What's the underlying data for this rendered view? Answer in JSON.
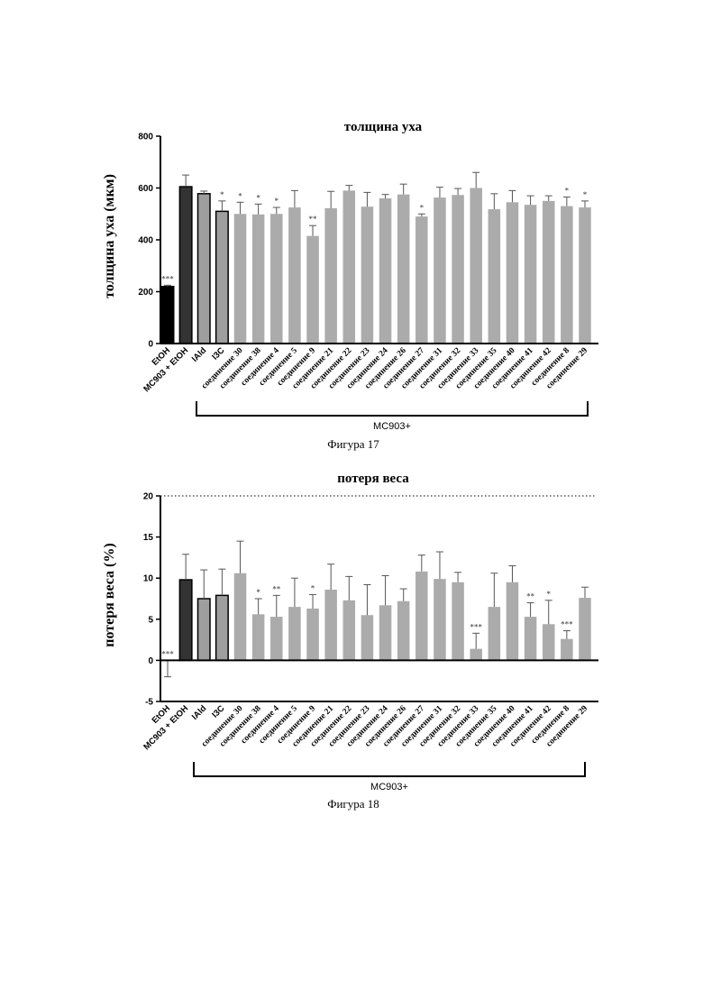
{
  "chart_data": [
    {
      "type": "bar",
      "title": "толщина уха",
      "ylabel": "толщина уха (мкм)",
      "xlabel": "",
      "ylim": [
        0,
        800
      ],
      "yticks": [
        "0",
        "200",
        "400",
        "600",
        "800"
      ],
      "ytick_values": [
        0,
        200,
        400,
        600,
        800
      ],
      "categories": [
        "EtOH",
        "MC903 + EtOH",
        "IAld",
        "I3C",
        "соединение 30",
        "соединение 38",
        "соединение 4",
        "соединение 5",
        "соединение 9",
        "соединение 21",
        "соединение 22",
        "соединение 23",
        "соединение 24",
        "соединение 26",
        "соединение 27",
        "соединение 31",
        "соединение 32",
        "соединение 33",
        "соединение 35",
        "соединение 40",
        "соединение 41",
        "соединение 42",
        "соединение 8",
        "соединение 29"
      ],
      "values": [
        220,
        605,
        578,
        510,
        500,
        498,
        500,
        525,
        415,
        522,
        590,
        528,
        560,
        575,
        490,
        563,
        573,
        600,
        518,
        545,
        535,
        550,
        530,
        525
      ],
      "errors": [
        5,
        45,
        10,
        40,
        45,
        40,
        25,
        65,
        40,
        65,
        20,
        55,
        15,
        40,
        10,
        40,
        25,
        60,
        60,
        45,
        35,
        20,
        35,
        25
      ],
      "significance": [
        "***",
        "",
        "",
        "*",
        "*",
        "*",
        "*",
        "",
        "**",
        "",
        "",
        "",
        "",
        "",
        "*",
        "",
        "",
        "",
        "",
        "",
        "",
        "",
        "*",
        "*"
      ],
      "bar_colors": [
        "#000000",
        "#333333",
        "#9e9e9e",
        "#9e9e9e",
        "#ababab",
        "#ababab",
        "#ababab",
        "#ababab",
        "#ababab",
        "#ababab",
        "#ababab",
        "#ababab",
        "#ababab",
        "#ababab",
        "#ababab",
        "#ababab",
        "#ababab",
        "#ababab",
        "#ababab",
        "#ababab",
        "#ababab",
        "#ababab",
        "#ababab",
        "#ababab"
      ],
      "bar_outlined": [
        true,
        true,
        true,
        true,
        false,
        false,
        false,
        false,
        false,
        false,
        false,
        false,
        false,
        false,
        false,
        false,
        false,
        false,
        false,
        false,
        false,
        false,
        false,
        false
      ],
      "group_label": "MC903+",
      "caption": "Фигура 17"
    },
    {
      "type": "bar",
      "title": "потеря веса",
      "ylabel": "потеря веса (%)",
      "xlabel": "",
      "ylim": [
        -5,
        20
      ],
      "yticks": [
        "-5",
        "0",
        "5",
        "10",
        "15",
        "20"
      ],
      "ytick_values": [
        -5,
        0,
        5,
        10,
        15,
        20
      ],
      "reference_line": 20,
      "categories": [
        "EtOH",
        "MC903 + EtOH",
        "IAld",
        "I3C",
        "соединение 30",
        "соединение 38",
        "соединение 4",
        "соединение 5",
        "соединение 9",
        "соединение 21",
        "соединение 22",
        "соединение 23",
        "соединение 24",
        "соединение 26",
        "соединение 27",
        "соединение 31",
        "соединение 32",
        "соединение 33",
        "соединение 35",
        "соединение 40",
        "соединение 41",
        "соединение 42",
        "соединение 8",
        "соединение 29"
      ],
      "values": [
        0,
        9.8,
        7.5,
        7.9,
        10.6,
        5.6,
        5.3,
        6.5,
        6.3,
        8.6,
        7.3,
        5.5,
        6.7,
        7.2,
        10.8,
        9.9,
        9.5,
        1.4,
        6.5,
        9.5,
        5.3,
        4.4,
        2.6,
        7.6
      ],
      "errors": [
        2.0,
        3.1,
        3.5,
        3.2,
        3.9,
        1.9,
        2.6,
        3.5,
        1.7,
        3.1,
        2.9,
        3.7,
        3.6,
        1.5,
        2.0,
        3.3,
        1.2,
        1.9,
        4.1,
        2.0,
        1.7,
        2.9,
        1.0,
        1.3
      ],
      "error_down": [
        true,
        false,
        false,
        false,
        false,
        false,
        false,
        false,
        false,
        false,
        false,
        false,
        false,
        false,
        false,
        false,
        false,
        false,
        false,
        false,
        false,
        false,
        false,
        false
      ],
      "significance": [
        "***",
        "",
        "",
        "",
        "",
        "*",
        "**",
        "",
        "*",
        "",
        "",
        "",
        "",
        "",
        "",
        "",
        "",
        "***",
        "",
        "",
        "**",
        "*",
        "***",
        ""
      ],
      "bar_colors": [
        "#000000",
        "#333333",
        "#9e9e9e",
        "#9e9e9e",
        "#ababab",
        "#ababab",
        "#ababab",
        "#ababab",
        "#ababab",
        "#ababab",
        "#ababab",
        "#ababab",
        "#ababab",
        "#ababab",
        "#ababab",
        "#ababab",
        "#ababab",
        "#ababab",
        "#ababab",
        "#ababab",
        "#ababab",
        "#ababab",
        "#ababab",
        "#ababab"
      ],
      "bar_outlined": [
        true,
        true,
        true,
        true,
        false,
        false,
        false,
        false,
        false,
        false,
        false,
        false,
        false,
        false,
        false,
        false,
        false,
        false,
        false,
        false,
        false,
        false,
        false,
        false
      ],
      "group_label": "MC903+",
      "caption": "Фигура 18"
    }
  ]
}
